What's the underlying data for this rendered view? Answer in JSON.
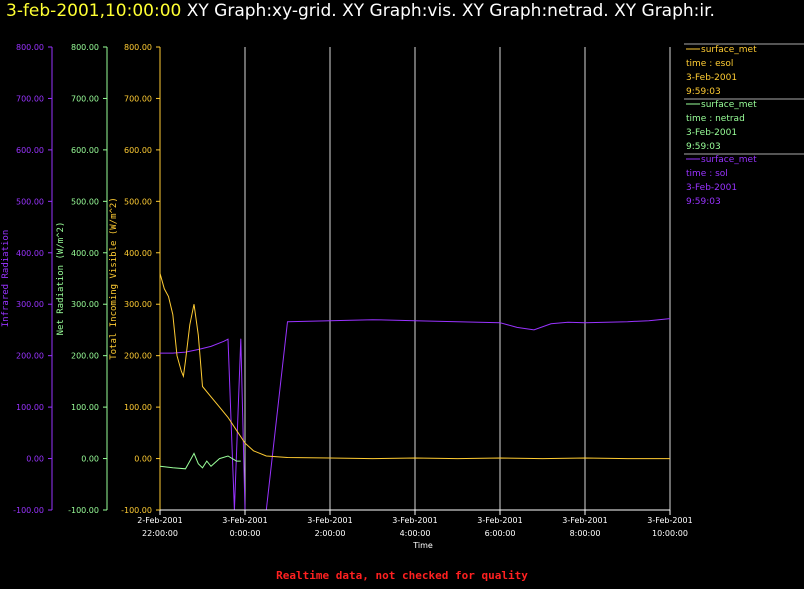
{
  "header": {
    "datetime": "3-feb-2001,10:00:00",
    "graphs": "XY Graph:xy-grid.  XY Graph:vis.  XY Graph:netrad.  XY Graph:ir."
  },
  "footer": {
    "note": "Realtime data, not checked for quality"
  },
  "colors": {
    "ir": "#9933ff",
    "netrad": "#99ff99",
    "vis": "#ffcc33",
    "grid": "#ffffff",
    "footer": "#ff2020",
    "title_date": "#ffff33"
  },
  "chart_data": {
    "type": "line",
    "xlabel": "Time",
    "x_ticks": [
      {
        "date": "2-Feb-2001",
        "time": "22:00:00"
      },
      {
        "date": "3-Feb-2001",
        "time": "0:00:00"
      },
      {
        "date": "3-Feb-2001",
        "time": "2:00:00"
      },
      {
        "date": "3-Feb-2001",
        "time": "4:00:00"
      },
      {
        "date": "3-Feb-2001",
        "time": "6:00:00"
      },
      {
        "date": "3-Feb-2001",
        "time": "8:00:00"
      },
      {
        "date": "3-Feb-2001",
        "time": "10:00:00"
      }
    ],
    "xlim_hours_from_first_tick": [
      0,
      12
    ],
    "axes": [
      {
        "key": "ir",
        "label": "Infrared Radiation",
        "ticks": [
          "800.00",
          "700.00",
          "600.00",
          "500.00",
          "400.00",
          "300.00",
          "200.00",
          "100.00",
          "0.00",
          "-100.00"
        ],
        "ylim": [
          -100,
          800
        ]
      },
      {
        "key": "netrad",
        "label": "Net Radiation (W/m^2)",
        "ticks": [
          "800.00",
          "700.00",
          "600.00",
          "500.00",
          "400.00",
          "300.00",
          "200.00",
          "100.00",
          "0.00",
          "-100.00"
        ],
        "ylim": [
          -100,
          800
        ]
      },
      {
        "key": "vis",
        "label": "Total Incoming Visible (W/m^2)",
        "ticks": [
          "800.00",
          "700.00",
          "600.00",
          "500.00",
          "400.00",
          "300.00",
          "200.00",
          "100.00",
          "0.00",
          "-100.00"
        ],
        "ylim": [
          -100,
          800
        ]
      }
    ],
    "legend": [
      {
        "key": "vis",
        "name": "surface_met",
        "field": "time : esol",
        "date": "3-Feb-2001",
        "time": "9:59:03"
      },
      {
        "key": "netrad",
        "name": "surface_met",
        "field": "time : netrad",
        "date": "3-Feb-2001",
        "time": "9:59:03"
      },
      {
        "key": "ir",
        "name": "surface_met",
        "field": "time : sol",
        "date": "3-Feb-2001",
        "time": "9:59:03"
      }
    ],
    "series": [
      {
        "key": "ir",
        "name": "surface_met sol",
        "x": [
          0,
          0.3,
          0.6,
          0.9,
          1.2,
          1.5,
          1.6,
          1.75,
          1.9,
          2.0,
          2.2,
          2.5,
          3,
          4,
          5,
          6,
          7,
          8,
          8.4,
          8.8,
          9.2,
          9.6,
          10,
          10.5,
          11,
          11.5,
          12
        ],
        "y": [
          205,
          205,
          207,
          212,
          218,
          228,
          232,
          -100,
          233,
          -100,
          -100,
          -100,
          266,
          268,
          270,
          268,
          266,
          264,
          255,
          250,
          262,
          265,
          264,
          265,
          266,
          268,
          272
        ]
      },
      {
        "key": "netrad",
        "name": "surface_met netrad",
        "x": [
          0,
          0.3,
          0.6,
          0.7,
          0.8,
          0.9,
          1.0,
          1.1,
          1.2,
          1.4,
          1.6,
          1.8,
          1.9
        ],
        "y": [
          -15,
          -18,
          -20,
          -5,
          10,
          -10,
          -18,
          -5,
          -15,
          0,
          5,
          -5,
          -5
        ]
      },
      {
        "key": "vis",
        "name": "surface_met esol",
        "x": [
          0,
          0.1,
          0.2,
          0.3,
          0.4,
          0.5,
          0.55,
          0.6,
          0.7,
          0.8,
          0.9,
          1.0,
          1.2,
          1.4,
          1.6,
          1.8,
          2.0,
          2.2,
          2.5,
          3,
          4,
          5,
          6,
          7,
          8,
          9,
          10,
          11,
          12
        ],
        "y": [
          360,
          330,
          315,
          280,
          200,
          170,
          160,
          190,
          260,
          300,
          240,
          140,
          120,
          100,
          80,
          55,
          30,
          15,
          5,
          2,
          1,
          0,
          1,
          0,
          1,
          0,
          1,
          0,
          0
        ]
      }
    ]
  }
}
